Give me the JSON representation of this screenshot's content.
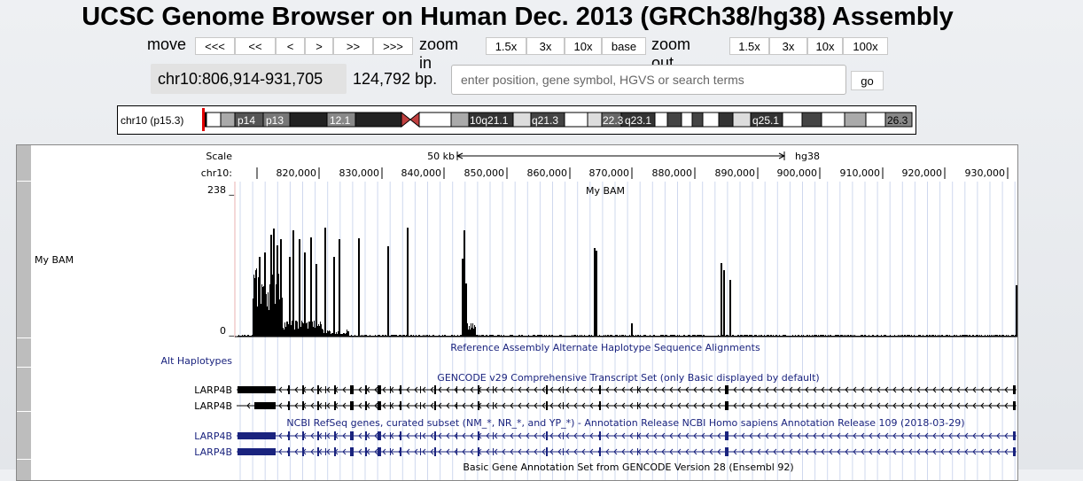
{
  "title": "UCSC Genome Browser on Human Dec. 2013 (GRCh38/hg38) Assembly",
  "nav": {
    "move_label": "move",
    "move_buttons": [
      "<<<",
      "<<",
      "<",
      ">",
      ">>",
      ">>>"
    ],
    "zoom_in_label": "zoom in",
    "zoom_in_buttons": [
      "1.5x",
      "3x",
      "10x",
      "base"
    ],
    "zoom_out_label": "zoom out",
    "zoom_out_buttons": [
      "1.5x",
      "3x",
      "10x",
      "100x"
    ]
  },
  "position": {
    "text": "chr10:806,914-931,705",
    "size": "124,792 bp.",
    "placeholder": "enter position, gene symbol, HGVS or search terms",
    "go": "go"
  },
  "ideogram": {
    "label": "chr10 (p15.3)",
    "bands": [
      "p14",
      "p13",
      "12.1",
      "10q21.1",
      "q21.3",
      "22.3",
      "q23.1",
      "q25.1",
      "26.3"
    ]
  },
  "ruler": {
    "scale_label": "Scale",
    "chrom_label": "chr10:",
    "scale_text": "50 kb",
    "assembly": "hg38",
    "ticks": [
      "820,000",
      "830,000",
      "840,000",
      "850,000",
      "860,000",
      "870,000",
      "880,000",
      "890,000",
      "900,000",
      "910,000",
      "920,000",
      "930,000"
    ]
  },
  "tracks": {
    "bam": {
      "side_label": "My BAM",
      "center_label": "My BAM",
      "ymax": "238 _",
      "ymin": "0 _"
    },
    "alt": {
      "side_label": "Alt Haplotypes",
      "center_label": "Reference Assembly Alternate Haplotype Sequence Alignments"
    },
    "gencode": {
      "center_label": "GENCODE v29 Comprehensive Transcript Set (only Basic displayed by default)",
      "genes": [
        "LARP4B",
        "LARP4B"
      ]
    },
    "refseq": {
      "center_label": "NCBI RefSeq genes, curated subset (NM_*, NR_*, and YP_*) - Annotation Release NCBI Homo sapiens Annotation Release 109 (2018-03-29)",
      "genes": [
        "LARP4B",
        "LARP4B"
      ]
    },
    "basic": {
      "center_label": "Basic Gene Annotation Set from GENCODE Version 28 (Ensembl 92)"
    }
  },
  "colors": {
    "refseq": "#1a237e",
    "black": "#000000",
    "centromere": "#c04040",
    "position_marker": "#e00000"
  }
}
